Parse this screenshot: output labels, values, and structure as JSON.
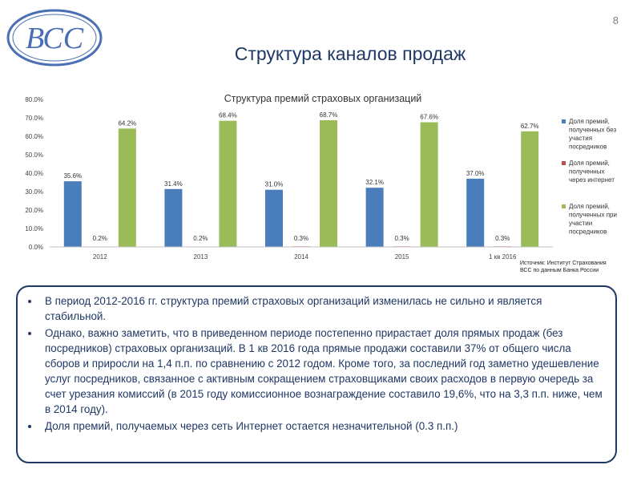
{
  "header": {
    "logo_text": "ВСС",
    "page_number": "8",
    "title": "Структура каналов продаж"
  },
  "colors": {
    "series": [
      "#4a7ebb",
      "#c0504d",
      "#9bbb59"
    ],
    "title": "#1f3864",
    "border": "#1f3864"
  },
  "chart_data": {
    "type": "bar",
    "title": "Структура премий страховых организаций",
    "categories": [
      "2012",
      "2013",
      "2014",
      "2015",
      "1 кв 2016"
    ],
    "series": [
      {
        "name": "Доля премий, полученных без участия посредников",
        "values": [
          35.6,
          31.4,
          31.0,
          32.1,
          37.0
        ]
      },
      {
        "name": "Доля премий, полученных через интернет",
        "values": [
          0.2,
          0.2,
          0.3,
          0.3,
          0.3
        ]
      },
      {
        "name": "Доля премий, полученных при участии посредников",
        "values": [
          64.2,
          68.4,
          68.7,
          67.6,
          62.7
        ]
      }
    ],
    "ylim": [
      0,
      80
    ],
    "yticks": [
      "0.0%",
      "10.0%",
      "20.0%",
      "30.0%",
      "40.0%",
      "50.0%",
      "60.0%",
      "70.0%",
      "80.0%"
    ],
    "legend_position": "right",
    "grid": false
  },
  "source": "Источник: Институт Страхования ВСС по данным Банка России",
  "bullets": [
    "В период 2012-2016 гг. структура премий страховых организаций изменилась не сильно и является стабильной.",
    "Однако, важно заметить, что в приведенном периоде постепенно прирастает доля прямых продаж (без посредников) страховых организаций. В 1 кв 2016 года прямые продажи составили 37% от общего числа сборов и приросли на 1,4 п.п. по сравнению с 2012 годом. Кроме того, за последний год заметно удешевление услуг посредников, связанное с активным сокращением страховщиками своих расходов в первую очередь за счет урезания комиссий (в 2015 году комиссионное вознаграждение составило 19,6%, что на 3,3 п.п. ниже, чем в 2014 году).",
    "Доля премий, получаемых через сеть Интернет остается незначительной (0.3 п.п.)"
  ]
}
